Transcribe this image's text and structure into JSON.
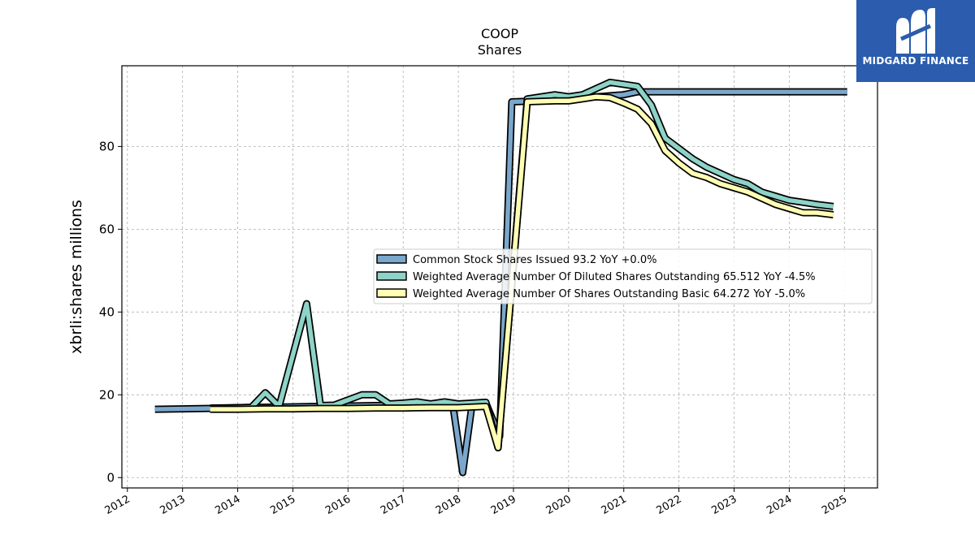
{
  "chart_data": {
    "type": "line",
    "title": "COOP",
    "subtitle": "Shares",
    "xlabel": "",
    "ylabel": "xbrli:shares millions",
    "xlim": [
      2011.9,
      2025.6
    ],
    "ylim": [
      -2.5,
      99.5
    ],
    "x_ticks": [
      "2012",
      "2013",
      "2014",
      "2015",
      "2016",
      "2017",
      "2018",
      "2019",
      "2020",
      "2021",
      "2022",
      "2023",
      "2024",
      "2025"
    ],
    "y_ticks": [
      0,
      20,
      40,
      60,
      80
    ],
    "grid": true,
    "legend_position": "center-right",
    "series": [
      {
        "name": "Common Stock Shares Issued  93.2 YoY +0.0%",
        "color": "#7ba7cc",
        "points": [
          [
            2012.5,
            16.5
          ],
          [
            2013.0,
            16.6
          ],
          [
            2013.5,
            16.7
          ],
          [
            2014.0,
            16.9
          ],
          [
            2014.5,
            17.0
          ],
          [
            2015.0,
            17.1
          ],
          [
            2015.5,
            17.2
          ],
          [
            2016.0,
            17.3
          ],
          [
            2016.5,
            17.4
          ],
          [
            2017.0,
            17.5
          ],
          [
            2017.5,
            17.6
          ],
          [
            2017.9,
            17.6
          ],
          [
            2018.08,
            1.2
          ],
          [
            2018.25,
            17.8
          ],
          [
            2018.5,
            18.0
          ],
          [
            2018.75,
            10.0
          ],
          [
            2018.97,
            90.8
          ],
          [
            2019.5,
            91.0
          ],
          [
            2020.0,
            91.5
          ],
          [
            2020.5,
            92.0
          ],
          [
            2021.0,
            92.5
          ],
          [
            2021.25,
            93.2
          ],
          [
            2022.0,
            93.2
          ],
          [
            2023.0,
            93.2
          ],
          [
            2024.0,
            93.2
          ],
          [
            2025.05,
            93.2
          ]
        ]
      },
      {
        "name": "Weighted Average Number Of Diluted Shares Outstanding  65.512 YoY -4.5%",
        "color": "#8dd3c7",
        "points": [
          [
            2013.5,
            16.8
          ],
          [
            2014.0,
            16.9
          ],
          [
            2014.25,
            17.0
          ],
          [
            2014.5,
            20.5
          ],
          [
            2014.75,
            17.2
          ],
          [
            2015.25,
            42.0
          ],
          [
            2015.5,
            17.4
          ],
          [
            2015.75,
            17.5
          ],
          [
            2016.25,
            20.0
          ],
          [
            2016.5,
            20.0
          ],
          [
            2016.75,
            17.8
          ],
          [
            2017.0,
            18.0
          ],
          [
            2017.25,
            18.3
          ],
          [
            2017.5,
            17.8
          ],
          [
            2017.75,
            18.3
          ],
          [
            2018.0,
            17.8
          ],
          [
            2018.5,
            18.2
          ],
          [
            2018.72,
            7.2
          ],
          [
            2019.25,
            91.5
          ],
          [
            2019.75,
            92.5
          ],
          [
            2020.0,
            92.0
          ],
          [
            2020.25,
            92.5
          ],
          [
            2020.75,
            95.5
          ],
          [
            2021.0,
            95.0
          ],
          [
            2021.25,
            94.5
          ],
          [
            2021.5,
            90.0
          ],
          [
            2021.75,
            82.0
          ],
          [
            2022.0,
            79.5
          ],
          [
            2022.25,
            77.0
          ],
          [
            2022.5,
            75.0
          ],
          [
            2022.75,
            73.5
          ],
          [
            2023.0,
            72.0
          ],
          [
            2023.25,
            71.0
          ],
          [
            2023.5,
            69.0
          ],
          [
            2023.75,
            68.0
          ],
          [
            2024.0,
            67.0
          ],
          [
            2024.25,
            66.5
          ],
          [
            2024.5,
            66.0
          ],
          [
            2024.8,
            65.5
          ]
        ]
      },
      {
        "name": "Weighted Average Number Of Shares Outstanding Basic  64.272 YoY -5.0%",
        "color": "#ffffb3",
        "points": [
          [
            2013.5,
            16.5
          ],
          [
            2014.0,
            16.5
          ],
          [
            2014.5,
            16.6
          ],
          [
            2015.0,
            16.6
          ],
          [
            2015.5,
            16.7
          ],
          [
            2016.0,
            16.7
          ],
          [
            2016.5,
            16.8
          ],
          [
            2017.0,
            16.8
          ],
          [
            2017.5,
            16.9
          ],
          [
            2018.0,
            16.9
          ],
          [
            2018.5,
            17.2
          ],
          [
            2018.72,
            7.2
          ],
          [
            2019.25,
            90.8
          ],
          [
            2019.75,
            91.0
          ],
          [
            2020.0,
            91.0
          ],
          [
            2020.25,
            91.5
          ],
          [
            2020.5,
            92.0
          ],
          [
            2020.75,
            91.8
          ],
          [
            2021.0,
            90.5
          ],
          [
            2021.25,
            89.0
          ],
          [
            2021.5,
            85.5
          ],
          [
            2021.75,
            79.0
          ],
          [
            2022.0,
            76.0
          ],
          [
            2022.25,
            73.5
          ],
          [
            2022.5,
            72.5
          ],
          [
            2022.75,
            71.0
          ],
          [
            2023.0,
            70.0
          ],
          [
            2023.25,
            69.0
          ],
          [
            2023.5,
            67.5
          ],
          [
            2023.75,
            66.0
          ],
          [
            2024.0,
            65.0
          ],
          [
            2024.25,
            64.0
          ],
          [
            2024.5,
            64.0
          ],
          [
            2024.8,
            63.5
          ]
        ]
      }
    ]
  },
  "logo": {
    "text": "MIDGARD FINANCE",
    "color": "#2b5cad"
  }
}
